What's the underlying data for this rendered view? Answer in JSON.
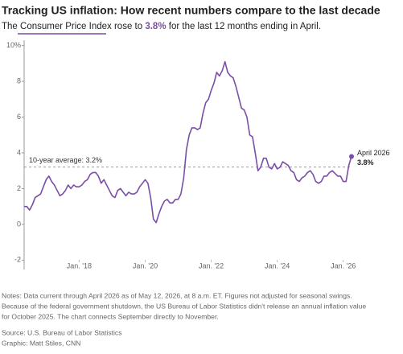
{
  "chart_data": {
    "type": "line",
    "title": "Tracking US inflation: How recent numbers compare to the last decade",
    "subtitle_parts": [
      "The Consumer Price Index rose to ",
      "3.8%",
      " for the last 12 months ending in April."
    ],
    "color": "#7a4ea6",
    "x": [
      "2016-05",
      "2016-06",
      "2016-07",
      "2016-08",
      "2016-09",
      "2016-10",
      "2016-11",
      "2016-12",
      "2017-01",
      "2017-02",
      "2017-03",
      "2017-04",
      "2017-05",
      "2017-06",
      "2017-07",
      "2017-08",
      "2017-09",
      "2017-10",
      "2017-11",
      "2017-12",
      "2018-01",
      "2018-02",
      "2018-03",
      "2018-04",
      "2018-05",
      "2018-06",
      "2018-07",
      "2018-08",
      "2018-09",
      "2018-10",
      "2018-11",
      "2018-12",
      "2019-01",
      "2019-02",
      "2019-03",
      "2019-04",
      "2019-05",
      "2019-06",
      "2019-07",
      "2019-08",
      "2019-09",
      "2019-10",
      "2019-11",
      "2019-12",
      "2020-01",
      "2020-02",
      "2020-03",
      "2020-04",
      "2020-05",
      "2020-06",
      "2020-07",
      "2020-08",
      "2020-09",
      "2020-10",
      "2020-11",
      "2020-12",
      "2021-01",
      "2021-02",
      "2021-03",
      "2021-04",
      "2021-05",
      "2021-06",
      "2021-07",
      "2021-08",
      "2021-09",
      "2021-10",
      "2021-11",
      "2021-12",
      "2022-01",
      "2022-02",
      "2022-03",
      "2022-04",
      "2022-05",
      "2022-06",
      "2022-07",
      "2022-08",
      "2022-09",
      "2022-10",
      "2022-11",
      "2022-12",
      "2023-01",
      "2023-02",
      "2023-03",
      "2023-04",
      "2023-05",
      "2023-06",
      "2023-07",
      "2023-08",
      "2023-09",
      "2023-10",
      "2023-11",
      "2023-12",
      "2024-01",
      "2024-02",
      "2024-03",
      "2024-04",
      "2024-05",
      "2024-06",
      "2024-07",
      "2024-08",
      "2024-09",
      "2024-10",
      "2024-11",
      "2024-12",
      "2025-01",
      "2025-02",
      "2025-03",
      "2025-04",
      "2025-05",
      "2025-06",
      "2025-07",
      "2025-08",
      "2025-09",
      "2025-11",
      "2025-12",
      "2026-01",
      "2026-02",
      "2026-03",
      "2026-04"
    ],
    "values": [
      1.0,
      1.0,
      0.8,
      1.1,
      1.5,
      1.6,
      1.7,
      2.1,
      2.5,
      2.7,
      2.4,
      2.2,
      1.9,
      1.6,
      1.7,
      1.9,
      2.2,
      2.0,
      2.2,
      2.1,
      2.1,
      2.2,
      2.4,
      2.5,
      2.8,
      2.9,
      2.9,
      2.7,
      2.3,
      2.5,
      2.2,
      1.9,
      1.6,
      1.5,
      1.9,
      2.0,
      1.8,
      1.6,
      1.8,
      1.7,
      1.7,
      1.8,
      2.1,
      2.3,
      2.5,
      2.3,
      1.5,
      0.3,
      0.1,
      0.6,
      1.0,
      1.3,
      1.4,
      1.2,
      1.2,
      1.4,
      1.4,
      1.7,
      2.6,
      4.2,
      5.0,
      5.4,
      5.4,
      5.3,
      5.4,
      6.2,
      6.8,
      7.0,
      7.5,
      7.9,
      8.5,
      8.3,
      8.6,
      9.1,
      8.5,
      8.3,
      8.2,
      7.7,
      7.1,
      6.5,
      6.4,
      6.0,
      5.0,
      4.9,
      4.0,
      3.0,
      3.2,
      3.7,
      3.7,
      3.2,
      3.1,
      3.4,
      3.1,
      3.2,
      3.5,
      3.4,
      3.3,
      3.0,
      2.9,
      2.5,
      2.4,
      2.6,
      2.7,
      2.9,
      3.0,
      2.8,
      2.4,
      2.3,
      2.4,
      2.7,
      2.7,
      2.9,
      3.0,
      2.7,
      2.7,
      2.4,
      2.4,
      3.3,
      3.8
    ],
    "xlim": [
      "2016-05",
      "2026-04"
    ],
    "xticks": [
      {
        "value": "2018-01",
        "label": "Jan. '18"
      },
      {
        "value": "2020-01",
        "label": "Jan. '20"
      },
      {
        "value": "2022-01",
        "label": "Jan. '22"
      },
      {
        "value": "2024-01",
        "label": "Jan. '24"
      },
      {
        "value": "2026-01",
        "label": "Jan. '26"
      }
    ],
    "ylim": [
      -2.3,
      10.3
    ],
    "yticks": [
      -2,
      0,
      2,
      4,
      6,
      8,
      {
        "value": 10,
        "label": "10%"
      }
    ],
    "average": {
      "value": 3.2,
      "label": "10-year average: 3.2%"
    },
    "last_point_label": "April 2026",
    "last_value_label": "3.8%",
    "notes": [
      "Notes: Data current through April 2026 as of May 12, 2026, at 8 a.m. ET. Figures not adjusted for seasonal swings.",
      "Because of the federal government shutdown, the US Bureau of Labor Statistics didn't release an annual inflation value",
      "for October 2025. The chart connects September directly to November."
    ],
    "source": "Source: U.S. Bureau of Labor Statistics",
    "credit": "Graphic: Matt Stiles, CNN"
  }
}
